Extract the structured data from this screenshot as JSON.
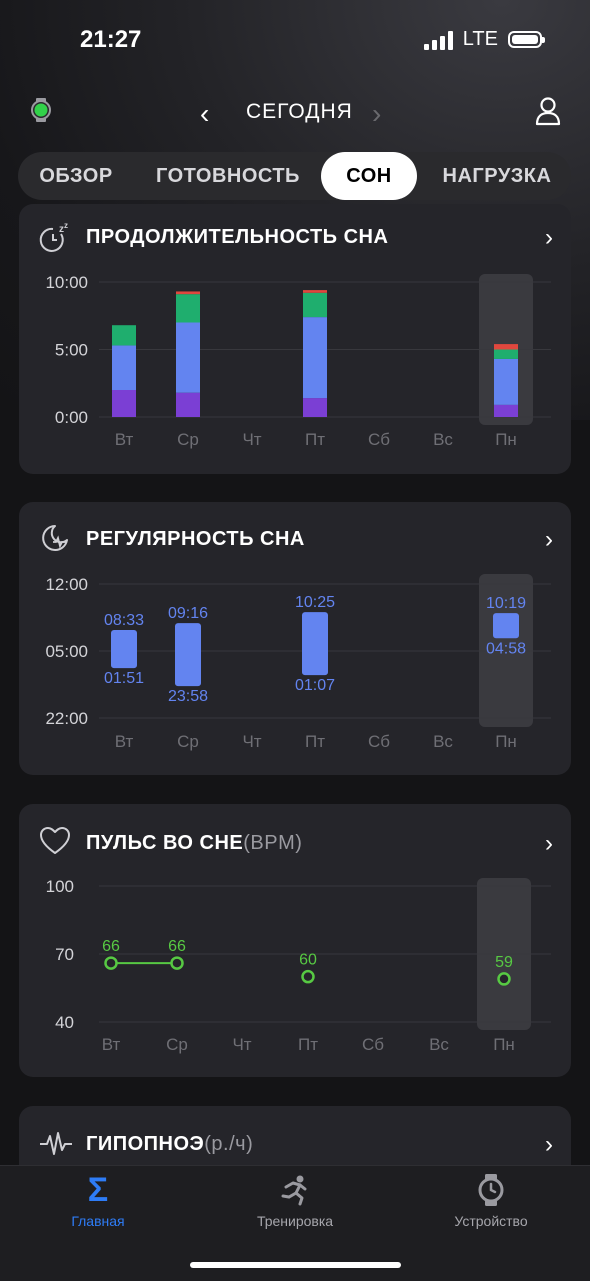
{
  "status_bar": {
    "time": "21:27",
    "network": "LTE"
  },
  "header": {
    "prev": "‹",
    "title": "СЕГОДНЯ",
    "next": "›"
  },
  "tabs": [
    {
      "label": "ОБЗОР",
      "active": false
    },
    {
      "label": "ГОТОВНОСТЬ",
      "active": false
    },
    {
      "label": "СОН",
      "active": true
    },
    {
      "label": "НАГРУЗКА",
      "active": false
    }
  ],
  "days": [
    "Вт",
    "Ср",
    "Чт",
    "Пт",
    "Сб",
    "Вс",
    "Пн"
  ],
  "colors": {
    "deep": "#7b3fd4",
    "light": "#6384f0",
    "rem": "#1fae6e",
    "awake": "#e0473e",
    "pulse": "#57c943",
    "highlight": "#3a3a3f"
  },
  "cards": {
    "duration": {
      "title": "ПРОДОЛЖИТЕЛЬНОСТЬ СНА",
      "chevron": "›"
    },
    "regularity": {
      "title": "РЕГУЛЯРНОСТЬ СНА",
      "chevron": "›"
    },
    "pulse": {
      "title": "ПУЛЬС ВО СНЕ",
      "unit": "(BPM)",
      "chevron": "›"
    },
    "hypopnea": {
      "title": "ГИПОПНОЭ",
      "unit": "(р./ч)",
      "chevron": "›"
    }
  },
  "chart_data": [
    {
      "type": "bar",
      "stacked": true,
      "categories": [
        "Вт",
        "Ср",
        "Чт",
        "Пт",
        "Сб",
        "Вс",
        "Пн"
      ],
      "y_tick_labels": [
        "0:00",
        "5:00",
        "10:00"
      ],
      "ylim": [
        0,
        10
      ],
      "highlight": "Пн",
      "series": [
        {
          "values": [
            2.0,
            1.8,
            0,
            1.4,
            0,
            0,
            0.9
          ]
        },
        {
          "values": [
            3.3,
            5.2,
            0,
            6.0,
            0,
            0,
            3.4
          ]
        },
        {
          "values": [
            1.5,
            2.1,
            0,
            1.8,
            0,
            0,
            0.7
          ]
        },
        {
          "values": [
            0,
            0.2,
            0,
            0.2,
            0,
            0,
            0.4
          ]
        }
      ]
    },
    {
      "type": "bar",
      "floating": true,
      "categories": [
        "Вт",
        "Ср",
        "Чт",
        "Пт",
        "Сб",
        "Вс",
        "Пн"
      ],
      "y_tick_labels": [
        "22:00",
        "05:00",
        "12:00"
      ],
      "ylim": [
        -2,
        12
      ],
      "highlight": "Пн",
      "bars": [
        {
          "day": "Вт",
          "start": "01:51",
          "end": "08:33",
          "start_h": 1.85,
          "end_h": 8.55
        },
        {
          "day": "Ср",
          "start": "23:58",
          "end": "09:16",
          "start_h": -0.03,
          "end_h": 9.27
        },
        {
          "day": "Пт",
          "start": "01:07",
          "end": "10:25",
          "start_h": 1.12,
          "end_h": 10.42
        },
        {
          "day": "Пн",
          "start": "04:58",
          "end": "10:19",
          "start_h": 4.97,
          "end_h": 10.32
        }
      ]
    },
    {
      "type": "line",
      "categories": [
        "Вт",
        "Ср",
        "Чт",
        "Пт",
        "Сб",
        "Вс",
        "Пн"
      ],
      "y_tick_labels": [
        "40",
        "70",
        "100"
      ],
      "ylim": [
        40,
        100
      ],
      "highlight": "Пн",
      "values": [
        66,
        66,
        null,
        60,
        null,
        null,
        59
      ]
    }
  ],
  "bottom_nav": [
    {
      "label": "Главная",
      "active": true
    },
    {
      "label": "Тренировка",
      "active": false
    },
    {
      "label": "Устройство",
      "active": false
    }
  ]
}
